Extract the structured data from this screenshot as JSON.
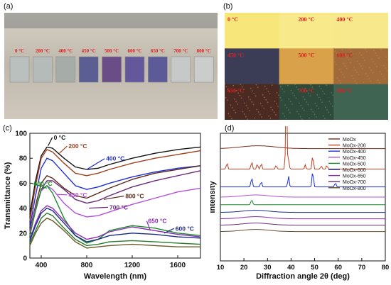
{
  "figure": {
    "panel_labels": [
      "(a)",
      "(b)",
      "(c)",
      "(d)"
    ]
  },
  "panel_a": {
    "temps": [
      "0 °C",
      "200 °C",
      "400 °C",
      "450 °C",
      "500 °C",
      "600 °C",
      "650 °C",
      "700 °C",
      "800 °C"
    ],
    "sample_colors": [
      "#b9c0bd",
      "#b4bbb8",
      "#a6ada9",
      "#5a5e93",
      "#6a4c87",
      "#65579b",
      "#5d5a98",
      "#c7c9c8",
      "#cbcdcc"
    ],
    "label_color": "#e02020"
  },
  "panel_b": {
    "temps": [
      "0 °C",
      "200 °C",
      "400 °C",
      "450 °C",
      "500 °C",
      "600 °C",
      "650 °C",
      "700 °C",
      "800 °C"
    ],
    "tile_colors": [
      "#f7e77a",
      "#f8e98a",
      "#f7e88c",
      "#3a3d55",
      "#d9a24a",
      "#a06a3a",
      "#4a2a22",
      "#2d4a3a",
      "#3f6452"
    ],
    "label_color": "#e02020"
  },
  "chart_data": [
    {
      "type": "line",
      "xlabel": "Wavelength (nm)",
      "ylabel": "Transmittance (%)",
      "xlim": [
        300,
        1800
      ],
      "ylim": [
        0,
        100
      ],
      "xticks": [
        400,
        800,
        1200,
        1600
      ],
      "yticks": [
        0,
        20,
        40,
        60,
        80,
        100
      ],
      "series": [
        {
          "name": "0 °C",
          "color": "#111111",
          "x": [
            300,
            350,
            400,
            450,
            500,
            600,
            700,
            800,
            900,
            1000,
            1200,
            1400,
            1600,
            1800
          ],
          "y": [
            35,
            62,
            82,
            89,
            88,
            80,
            73,
            71,
            72,
            75,
            80,
            84,
            87,
            89
          ]
        },
        {
          "name": "200 °C",
          "color": "#a04020",
          "x": [
            300,
            350,
            400,
            450,
            500,
            600,
            700,
            800,
            900,
            1000,
            1200,
            1400,
            1600,
            1800
          ],
          "y": [
            30,
            58,
            80,
            87,
            85,
            76,
            68,
            66,
            68,
            71,
            76,
            80,
            83,
            86
          ]
        },
        {
          "name": "400 °C",
          "color": "#1f2fd8",
          "x": [
            300,
            350,
            400,
            450,
            500,
            600,
            700,
            800,
            900,
            1000,
            1200,
            1400,
            1600,
            1800
          ],
          "y": [
            25,
            50,
            72,
            80,
            78,
            68,
            58,
            55,
            57,
            60,
            65,
            69,
            72,
            74
          ]
        },
        {
          "name": "800 °C",
          "color": "#5a2a1a",
          "x": [
            300,
            350,
            400,
            450,
            500,
            600,
            700,
            800,
            900,
            1000,
            1200,
            1400,
            1600,
            1800
          ],
          "y": [
            22,
            42,
            60,
            66,
            64,
            56,
            50,
            48,
            52,
            56,
            63,
            68,
            71,
            74
          ]
        },
        {
          "name": "700 °C",
          "color": "#6a2a7a",
          "x": [
            300,
            350,
            400,
            450,
            500,
            600,
            700,
            800,
            900,
            1000,
            1200,
            1400,
            1600,
            1800
          ],
          "y": [
            20,
            38,
            55,
            62,
            62,
            55,
            47,
            44,
            46,
            50,
            57,
            62,
            66,
            70
          ]
        },
        {
          "name": "450 °C",
          "color": "#b450d8",
          "x": [
            300,
            350,
            400,
            450,
            500,
            600,
            700,
            800,
            900,
            1000,
            1200,
            1400,
            1600,
            1800
          ],
          "y": [
            20,
            40,
            54,
            58,
            55,
            44,
            36,
            33,
            34,
            37,
            43,
            48,
            53,
            56
          ]
        },
        {
          "name": "500 °C",
          "color": "#1a8a2a",
          "x": [
            300,
            350,
            400,
            450,
            500,
            600,
            700,
            800,
            900,
            1000,
            1200,
            1400,
            1600,
            1800
          ],
          "y": [
            18,
            38,
            55,
            58,
            52,
            32,
            18,
            12,
            15,
            22,
            26,
            24,
            20,
            18
          ]
        },
        {
          "name": "650 °C",
          "color": "#8a2ab4",
          "x": [
            300,
            350,
            400,
            450,
            500,
            600,
            700,
            800,
            900,
            1000,
            1200,
            1400,
            1600,
            1800
          ],
          "y": [
            15,
            28,
            38,
            42,
            40,
            30,
            20,
            15,
            17,
            21,
            25,
            22,
            19,
            17
          ]
        },
        {
          "name": "600 °C",
          "color": "#1a2a8a",
          "x": [
            300,
            350,
            400,
            450,
            500,
            600,
            700,
            800,
            900,
            1000,
            1200,
            1400,
            1600,
            1800
          ],
          "y": [
            14,
            26,
            36,
            40,
            38,
            28,
            18,
            13,
            15,
            18,
            20,
            19,
            17,
            16
          ]
        },
        {
          "name": "",
          "color": "#2a7a2a",
          "x": [
            300,
            350,
            400,
            450,
            500,
            600,
            700,
            800,
            900,
            1000,
            1200,
            1400,
            1600,
            1800
          ],
          "y": [
            12,
            22,
            32,
            36,
            34,
            24,
            15,
            10,
            11,
            13,
            14,
            13,
            12,
            11
          ]
        },
        {
          "name": "",
          "color": "#6a5a2a",
          "x": [
            300,
            350,
            400,
            450,
            500,
            600,
            700,
            800,
            900,
            1000,
            1200,
            1400,
            1600,
            1800
          ],
          "y": [
            10,
            20,
            28,
            32,
            30,
            22,
            13,
            8,
            9,
            10,
            11,
            10,
            9,
            9
          ]
        }
      ],
      "annotations": [
        "0 °C",
        "200 °C",
        "400 °C",
        "500 °C",
        "450 °C",
        "800 °C",
        "700 °C",
        "650 °C",
        "600 °C"
      ]
    },
    {
      "type": "line",
      "xlabel": "Diffraction angle 2θ (deg)",
      "ylabel": "Intensity",
      "xlim": [
        10,
        80
      ],
      "xticks": [
        10,
        20,
        30,
        40,
        50,
        60,
        70,
        80
      ],
      "legend_position": "top-right",
      "series": [
        {
          "name": "MoOx",
          "color": "#7a2a1a",
          "offset": 0.88
        },
        {
          "name": "MoOx-200",
          "color": "#c04020",
          "offset": 0.72
        },
        {
          "name": "MoOx-400",
          "color": "#1f2fd8",
          "offset": 0.58
        },
        {
          "name": "MoOx-450",
          "color": "#b450d8",
          "offset": 0.5
        },
        {
          "name": "MoOx-500",
          "color": "#1a8a2a",
          "offset": 0.44
        },
        {
          "name": "MoOx-600",
          "color": "#1a2a8a",
          "offset": 0.38
        },
        {
          "name": "MoOx-650",
          "color": "#8a2ab4",
          "offset": 0.33
        },
        {
          "name": "MoOx-700",
          "color": "#6a2a7a",
          "offset": 0.28
        },
        {
          "name": "MoOx-800",
          "color": "#6a4a2a",
          "offset": 0.23
        }
      ]
    }
  ]
}
